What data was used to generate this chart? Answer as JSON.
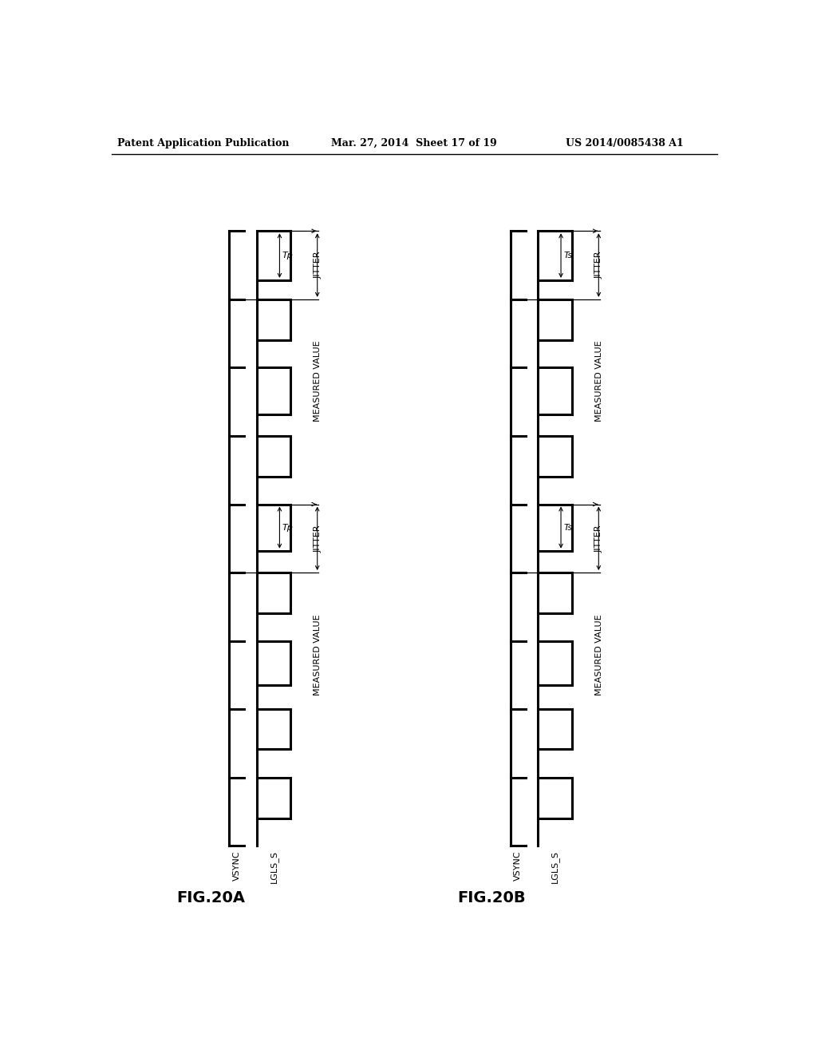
{
  "header_left": "Patent Application Publication",
  "header_mid": "Mar. 27, 2014  Sheet 17 of 19",
  "header_right": "US 2014/0085438 A1",
  "fig_a_label": "FIG.20A",
  "fig_b_label": "FIG.20B",
  "vsync_label": "VSYNC",
  "lgls_label": "LGLS_S",
  "jitter_label": "JITTER",
  "measured_label": "MEASURED VALUE",
  "tp_label": "Tp",
  "ts_label": "Ts",
  "line_color": "#000000",
  "bg_color": "#ffffff",
  "lw": 2.2
}
